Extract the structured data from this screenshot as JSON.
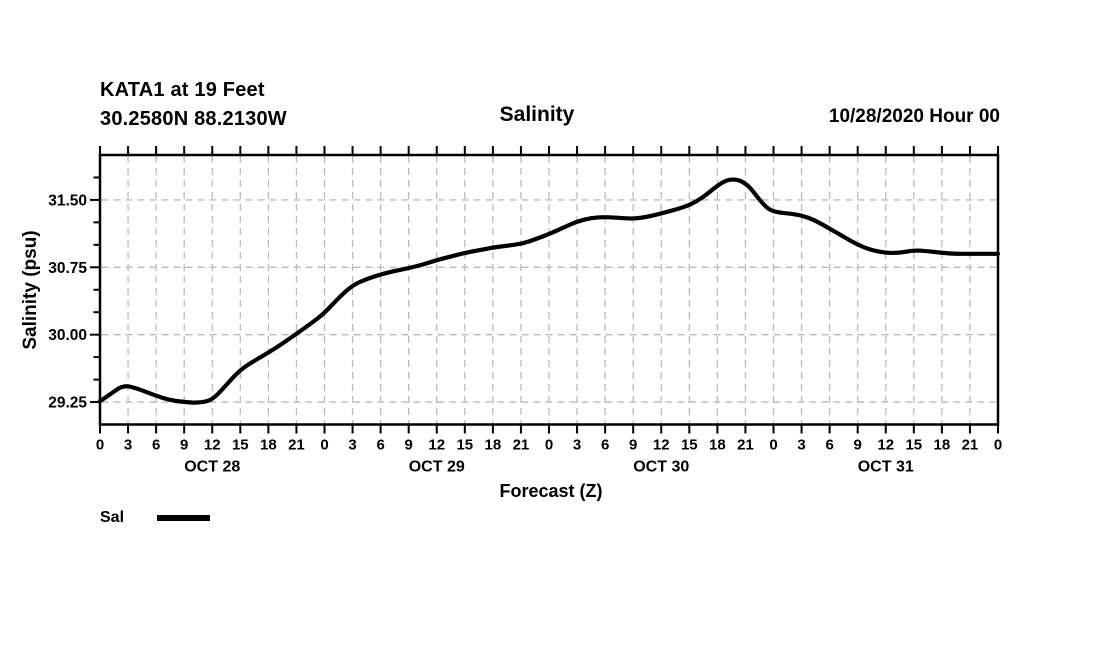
{
  "header": {
    "station_line": "KATA1 at 19 Feet",
    "coords_line": "30.2580N 88.2130W",
    "title": "Salinity",
    "datetime": "10/28/2020 Hour 00"
  },
  "legend": {
    "label": "Sal"
  },
  "colors": {
    "line": "#000000",
    "grid": "#bbbbbb",
    "frame": "#000000",
    "background": "#ffffff"
  },
  "chart_data": {
    "type": "line",
    "title": "Salinity",
    "xlabel": "Forecast (Z)",
    "ylabel": "Salinity (psu)",
    "xlim": [
      0,
      96
    ],
    "ylim": [
      29.0,
      32.0
    ],
    "grid": "dashed, at every 3-hour x tick and every major y tick",
    "legend_position": "below-left",
    "x_tick_step_hours": 3,
    "x_tick_labels": [
      "0",
      "3",
      "6",
      "9",
      "12",
      "15",
      "18",
      "21",
      "0",
      "3",
      "6",
      "9",
      "12",
      "15",
      "18",
      "21",
      "0",
      "3",
      "6",
      "9",
      "12",
      "15",
      "18",
      "21",
      "0",
      "3",
      "6",
      "9",
      "12",
      "15",
      "18",
      "21",
      "0"
    ],
    "day_labels": [
      {
        "label": "OCT 28",
        "center_hour": 12
      },
      {
        "label": "OCT 29",
        "center_hour": 36
      },
      {
        "label": "OCT 30",
        "center_hour": 60
      },
      {
        "label": "OCT 31",
        "center_hour": 84
      }
    ],
    "y_major_ticks": [
      {
        "value": 29.25,
        "label": "29.25"
      },
      {
        "value": 30.0,
        "label": "30.00"
      },
      {
        "value": 30.75,
        "label": "30.75"
      },
      {
        "value": 31.5,
        "label": "31.50"
      }
    ],
    "y_minor_step": 0.25,
    "series": [
      {
        "name": "Sal",
        "units": "psu",
        "points": [
          [
            0,
            29.26
          ],
          [
            1,
            29.33
          ],
          [
            2.5,
            29.44
          ],
          [
            4,
            29.4
          ],
          [
            6,
            29.32
          ],
          [
            7.5,
            29.27
          ],
          [
            9,
            29.25
          ],
          [
            10.5,
            29.24
          ],
          [
            12,
            29.27
          ],
          [
            13.5,
            29.44
          ],
          [
            15,
            29.61
          ],
          [
            16.5,
            29.71
          ],
          [
            18,
            29.8
          ],
          [
            19.5,
            29.9
          ],
          [
            21,
            30.01
          ],
          [
            22.5,
            30.12
          ],
          [
            24,
            30.24
          ],
          [
            25.5,
            30.41
          ],
          [
            27,
            30.55
          ],
          [
            28.5,
            30.62
          ],
          [
            30,
            30.67
          ],
          [
            31.5,
            30.71
          ],
          [
            33,
            30.74
          ],
          [
            34.5,
            30.78
          ],
          [
            36,
            30.83
          ],
          [
            37.5,
            30.87
          ],
          [
            39,
            30.91
          ],
          [
            40.5,
            30.94
          ],
          [
            42,
            30.97
          ],
          [
            43.5,
            30.99
          ],
          [
            45,
            31.01
          ],
          [
            46.5,
            31.06
          ],
          [
            48,
            31.12
          ],
          [
            49.5,
            31.19
          ],
          [
            51,
            31.26
          ],
          [
            52.5,
            31.3
          ],
          [
            54,
            31.31
          ],
          [
            55.5,
            31.3
          ],
          [
            57,
            31.29
          ],
          [
            58.5,
            31.31
          ],
          [
            60,
            31.35
          ],
          [
            61.5,
            31.39
          ],
          [
            63,
            31.44
          ],
          [
            64.5,
            31.53
          ],
          [
            66,
            31.66
          ],
          [
            67,
            31.72
          ],
          [
            67.8,
            31.73
          ],
          [
            68.6,
            31.71
          ],
          [
            69.5,
            31.64
          ],
          [
            70.5,
            31.5
          ],
          [
            71.5,
            31.39
          ],
          [
            72.5,
            31.36
          ],
          [
            73.5,
            31.35
          ],
          [
            75,
            31.33
          ],
          [
            76.5,
            31.27
          ],
          [
            78,
            31.18
          ],
          [
            79.5,
            31.09
          ],
          [
            81,
            31.0
          ],
          [
            82.5,
            30.94
          ],
          [
            84,
            30.91
          ],
          [
            85.5,
            30.91
          ],
          [
            87,
            30.94
          ],
          [
            88.5,
            30.93
          ],
          [
            90,
            30.91
          ],
          [
            91.5,
            30.9
          ],
          [
            93,
            30.9
          ],
          [
            94.5,
            30.9
          ],
          [
            96,
            30.9
          ]
        ]
      }
    ]
  }
}
